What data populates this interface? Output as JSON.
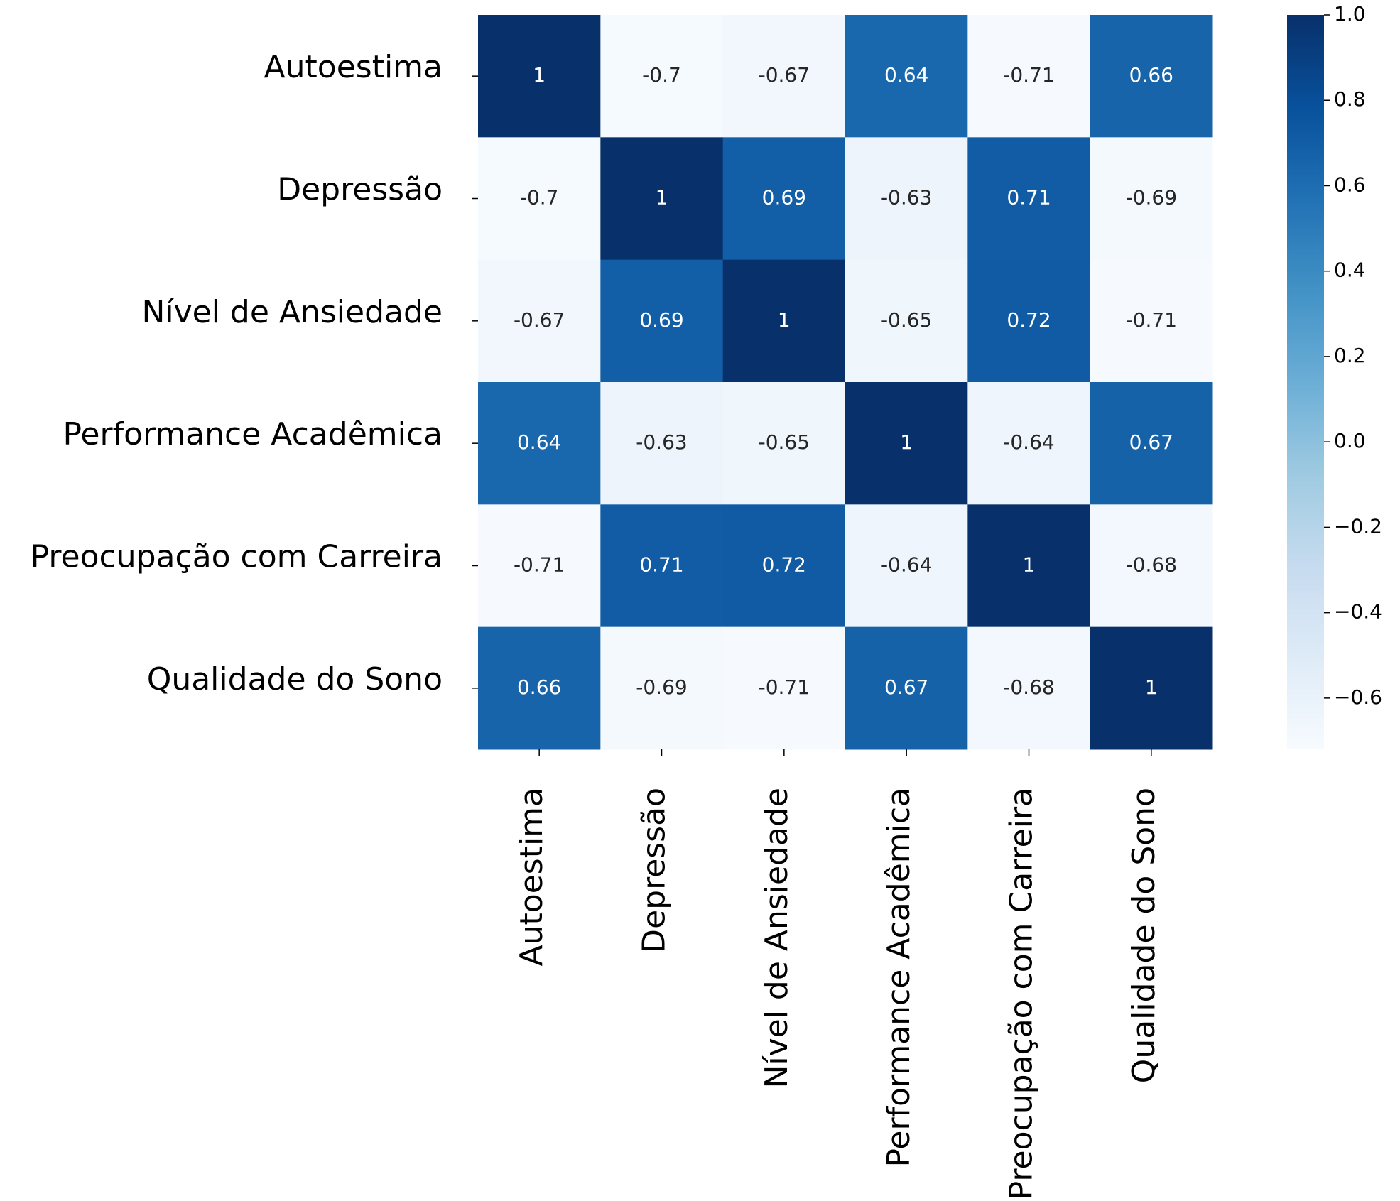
{
  "chart_data": {
    "type": "heatmap",
    "x_categories": [
      "Autoestima",
      "Depressão",
      "Nível de Ansiedade",
      "Performance Acadêmica",
      "Preocupação com Carreira",
      "Qualidade do Sono"
    ],
    "y_categories": [
      "Autoestima",
      "Depressão",
      "Nível de Ansiedade",
      "Performance Acadêmica",
      "Preocupação com Carreira",
      "Qualidade do Sono"
    ],
    "values": [
      [
        1,
        -0.7,
        -0.67,
        0.64,
        -0.71,
        0.66
      ],
      [
        -0.7,
        1,
        0.69,
        -0.63,
        0.71,
        -0.69
      ],
      [
        -0.67,
        0.69,
        1,
        -0.65,
        0.72,
        -0.71
      ],
      [
        0.64,
        -0.63,
        -0.65,
        1,
        -0.64,
        0.67
      ],
      [
        -0.71,
        0.71,
        0.72,
        -0.64,
        1,
        -0.68
      ],
      [
        0.66,
        -0.69,
        -0.71,
        0.67,
        -0.68,
        1
      ]
    ],
    "colormap": "Blues",
    "clim": [
      -0.72,
      1.0
    ],
    "colorbar_ticks": [
      {
        "value": 1.0,
        "label": "1.0"
      },
      0.8,
      0.6,
      0.4,
      0.2,
      {
        "value": 0,
        "label": "0.0"
      },
      {
        "value": -0.2,
        "label": "−0.2"
      },
      {
        "value": -0.4,
        "label": "−0.4"
      },
      {
        "value": -0.6,
        "label": "−0.6"
      }
    ]
  }
}
